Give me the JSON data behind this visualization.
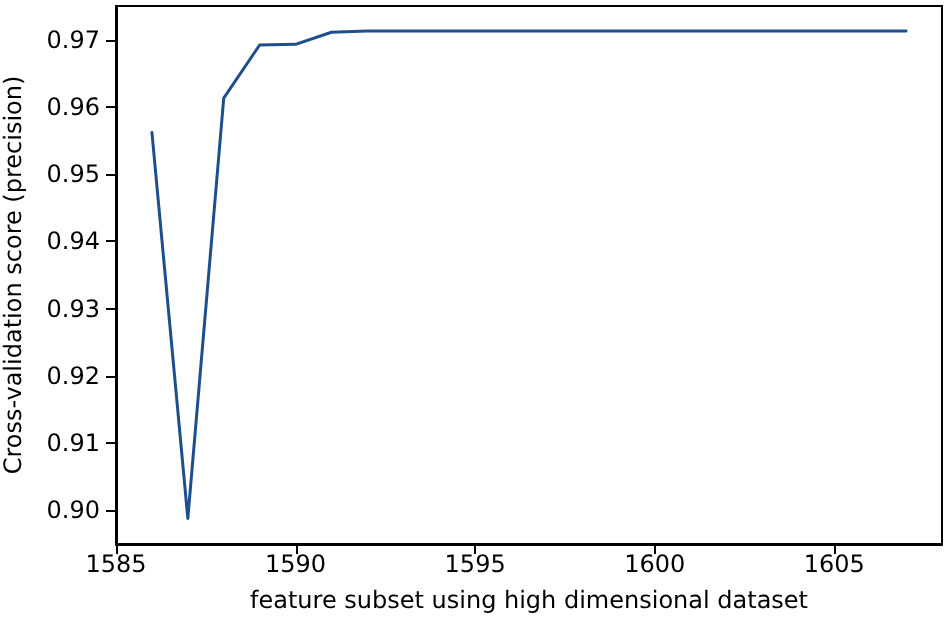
{
  "chart_data": {
    "type": "line",
    "xlabel": "feature subset using high dimensional dataset",
    "ylabel": "Cross-validation score (precision)",
    "x": [
      1586,
      1587,
      1588,
      1589,
      1590,
      1591,
      1592,
      1593,
      1594,
      1595,
      1596,
      1597,
      1598,
      1599,
      1600,
      1601,
      1602,
      1603,
      1604,
      1605,
      1606,
      1607
    ],
    "series": [
      {
        "color": "#1f4e8c",
        "values": [
          0.9562,
          0.8988,
          0.9613,
          0.9692,
          0.9693,
          0.9711,
          0.9713,
          0.9713,
          0.9713,
          0.9713,
          0.9713,
          0.9713,
          0.9713,
          0.9713,
          0.9713,
          0.9713,
          0.9713,
          0.9713,
          0.9713,
          0.9713,
          0.9713,
          0.9713
        ]
      }
    ],
    "xlim": [
      1585,
      1608
    ],
    "xticks": [
      1585,
      1590,
      1595,
      1600,
      1605
    ],
    "ylim": [
      0.895,
      0.975
    ],
    "yticks": [
      {
        "value": 0.9,
        "label": "0.90"
      },
      {
        "value": 0.91,
        "label": "0.91"
      },
      {
        "value": 0.92,
        "label": "0.92"
      },
      {
        "value": 0.93,
        "label": "0.93"
      },
      {
        "value": 0.94,
        "label": "0.94"
      },
      {
        "value": 0.95,
        "label": "0.95"
      },
      {
        "value": 0.96,
        "label": "0.96"
      },
      {
        "value": 0.97,
        "label": "0.97"
      }
    ],
    "marker": "none",
    "line_style": "solid"
  }
}
